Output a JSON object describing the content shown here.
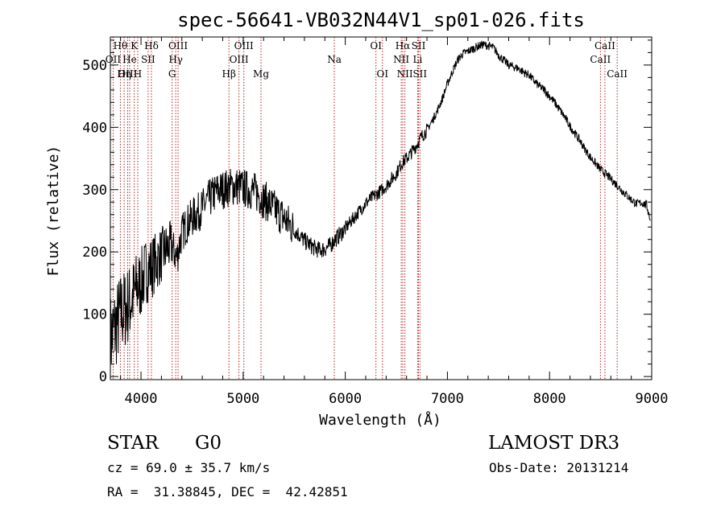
{
  "chart_data": {
    "type": "line",
    "title": "spec-56641-VB032N44V1_sp01-026.fits",
    "xlabel": "Wavelength (Å)",
    "ylabel": "Flux (relative)",
    "xlim": [
      3700,
      9000
    ],
    "ylim": [
      -5,
      545
    ],
    "xticks": [
      4000,
      5000,
      6000,
      7000,
      8000,
      9000
    ],
    "yticks": [
      0,
      100,
      200,
      300,
      400,
      500
    ],
    "x": [
      3700,
      3750,
      3800,
      3850,
      3900,
      3950,
      4000,
      4050,
      4100,
      4150,
      4200,
      4250,
      4300,
      4350,
      4400,
      4450,
      4500,
      4550,
      4600,
      4650,
      4700,
      4750,
      4800,
      4850,
      4900,
      4950,
      5000,
      5050,
      5100,
      5150,
      5200,
      5250,
      5300,
      5350,
      5400,
      5450,
      5500,
      5550,
      5600,
      5650,
      5700,
      5750,
      5800,
      5850,
      5900,
      5950,
      6000,
      6050,
      6100,
      6150,
      6200,
      6250,
      6300,
      6350,
      6400,
      6450,
      6500,
      6550,
      6600,
      6650,
      6700,
      6750,
      6800,
      6850,
      6900,
      6950,
      7000,
      7050,
      7100,
      7150,
      7200,
      7250,
      7300,
      7350,
      7400,
      7450,
      7500,
      7550,
      7600,
      7650,
      7700,
      7750,
      7800,
      7850,
      7900,
      7950,
      8000,
      8050,
      8100,
      8150,
      8200,
      8250,
      8300,
      8350,
      8400,
      8450,
      8500,
      8550,
      8600,
      8650,
      8700,
      8750,
      8800,
      8850,
      8900,
      8950,
      8990
    ],
    "y": [
      60,
      80,
      100,
      110,
      120,
      140,
      150,
      170,
      175,
      185,
      195,
      205,
      210,
      190,
      230,
      245,
      255,
      262,
      270,
      282,
      290,
      298,
      300,
      303,
      305,
      305,
      302,
      300,
      298,
      292,
      284,
      278,
      270,
      262,
      254,
      245,
      236,
      227,
      218,
      212,
      206,
      203,
      205,
      210,
      220,
      228,
      238,
      248,
      258,
      268,
      278,
      286,
      292,
      298,
      306,
      316,
      326,
      342,
      350,
      360,
      372,
      386,
      396,
      410,
      426,
      446,
      470,
      490,
      508,
      518,
      522,
      526,
      530,
      533,
      531,
      528,
      516,
      508,
      500,
      497,
      494,
      488,
      484,
      474,
      466,
      460,
      450,
      440,
      428,
      416,
      402,
      390,
      378,
      364,
      352,
      342,
      332,
      325,
      317,
      309,
      300,
      292,
      284,
      277,
      279,
      275,
      250
    ],
    "lines": [
      {
        "label": "Hθ",
        "wavelength": 3798,
        "row": 0
      },
      {
        "label": "OII",
        "wavelength": 3727,
        "row": 1
      },
      {
        "label": "OIII",
        "wavelength": 3869,
        "row": 2
      },
      {
        "label": "Hη",
        "wavelength": 3835,
        "row": 2
      },
      {
        "label": "He",
        "wavelength": 3889,
        "row": 1
      },
      {
        "label": "K",
        "wavelength": 3934,
        "row": 0
      },
      {
        "label": "H",
        "wavelength": 3968,
        "row": 2
      },
      {
        "label": "SII",
        "wavelength": 4070,
        "row": 1
      },
      {
        "label": "Hδ",
        "wavelength": 4102,
        "row": 0
      },
      {
        "label": "OIII",
        "wavelength": 4363,
        "row": 0
      },
      {
        "label": "Hγ",
        "wavelength": 4340,
        "row": 1
      },
      {
        "label": "G",
        "wavelength": 4305,
        "row": 2
      },
      {
        "label": "Hβ",
        "wavelength": 4861,
        "row": 2
      },
      {
        "label": "OIII",
        "wavelength": 5007,
        "row": 0
      },
      {
        "label": "OIII",
        "wavelength": 4959,
        "row": 1
      },
      {
        "label": "Mg",
        "wavelength": 5175,
        "row": 2
      },
      {
        "label": "Na",
        "wavelength": 5893,
        "row": 1
      },
      {
        "label": "OI",
        "wavelength": 6300,
        "row": 0
      },
      {
        "label": "OI",
        "wavelength": 6364,
        "row": 2
      },
      {
        "label": "Hα",
        "wavelength": 6563,
        "row": 0
      },
      {
        "label": "NII",
        "wavelength": 6548,
        "row": 1
      },
      {
        "label": "NII",
        "wavelength": 6584,
        "row": 2
      },
      {
        "label": "SII",
        "wavelength": 6717,
        "row": 0
      },
      {
        "label": "SII",
        "wavelength": 6731,
        "row": 2
      },
      {
        "label": "Li",
        "wavelength": 6708,
        "row": 1
      },
      {
        "label": "CaII",
        "wavelength": 8542,
        "row": 0
      },
      {
        "label": "CaII",
        "wavelength": 8498,
        "row": 1
      },
      {
        "label": "CaII",
        "wavelength": 8662,
        "row": 2
      }
    ]
  },
  "info": {
    "object_class": "STAR",
    "subclass": "G0",
    "survey": "LAMOST DR3",
    "redshift": "cz = 69.0 ± 35.7 km/s",
    "obs_date": "Obs-Date: 20131214",
    "coordinates": "RA =  31.38845, DEC =  42.42851"
  },
  "colors": {
    "spectrum": "#000000",
    "line_marker": "#b22222",
    "axis": "#000000",
    "background": "#ffffff"
  }
}
